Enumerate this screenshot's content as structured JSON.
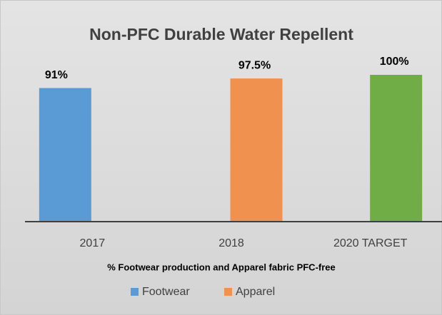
{
  "chart_data": {
    "type": "bar",
    "title": "Non-PFC Durable Water Repellent",
    "x_label": "% Footwear production and Apparel fabric PFC-free",
    "categories": [
      "2017",
      "2018",
      "2020 TARGET"
    ],
    "values": [
      91,
      97.5,
      100
    ],
    "value_labels": [
      "91%",
      "97.5%",
      "100%"
    ],
    "colors": [
      "#5b9bd5",
      "#f0914f",
      "#70ad47"
    ],
    "legend": [
      {
        "name": "Footwear",
        "color": "#5b9bd5"
      },
      {
        "name": "Apparel",
        "color": "#f0914f"
      }
    ],
    "ylim": [
      0,
      100
    ]
  }
}
